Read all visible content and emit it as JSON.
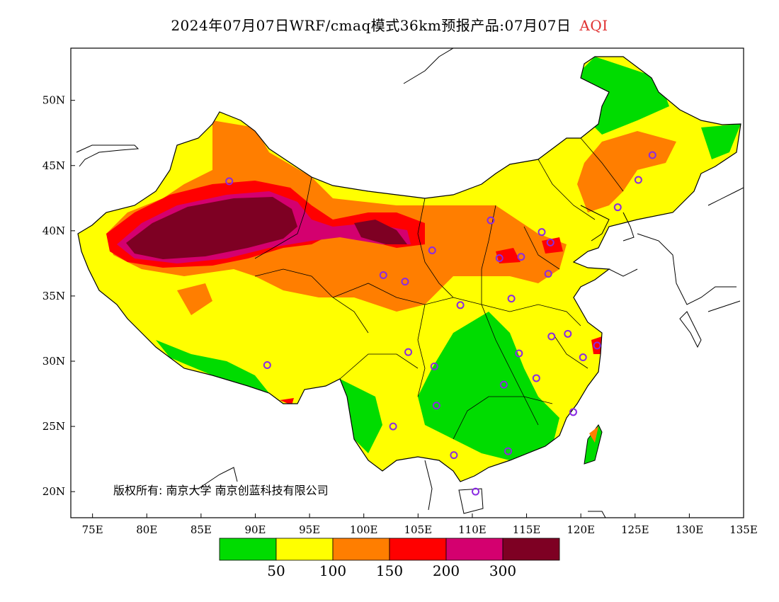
{
  "title": {
    "main": "2024年07月07日WRF/cmaq模式36km预报产品:07月07日",
    "variable": "AQI",
    "variable_color": "#e03030"
  },
  "map": {
    "lon_range": [
      73,
      135
    ],
    "lat_range": [
      18,
      54
    ],
    "lon_ticks": [
      "75E",
      "80E",
      "85E",
      "90E",
      "95E",
      "100E",
      "105E",
      "110E",
      "115E",
      "120E",
      "125E",
      "130E",
      "135E"
    ],
    "lat_ticks": [
      "20N",
      "25N",
      "30N",
      "35N",
      "40N",
      "45N",
      "50N"
    ],
    "copyright": "版权所有: 南京大学  南京创蓝科技有限公司"
  },
  "legend": {
    "colors": [
      "#00dc00",
      "#ffff00",
      "#ff7e00",
      "#ff0000",
      "#d4006f",
      "#7e0023"
    ],
    "labels": [
      "50",
      "100",
      "150",
      "200",
      "300"
    ]
  },
  "stations": [
    [
      87.6,
      43.8
    ],
    [
      101.8,
      36.6
    ],
    [
      103.8,
      36.1
    ],
    [
      106.3,
      38.5
    ],
    [
      111.7,
      40.8
    ],
    [
      116.4,
      39.9
    ],
    [
      117.2,
      39.1
    ],
    [
      114.5,
      38.0
    ],
    [
      112.5,
      37.9
    ],
    [
      117.0,
      36.7
    ],
    [
      113.6,
      34.8
    ],
    [
      108.9,
      34.3
    ],
    [
      117.3,
      31.9
    ],
    [
      118.8,
      32.1
    ],
    [
      121.5,
      31.2
    ],
    [
      120.2,
      30.3
    ],
    [
      114.3,
      30.6
    ],
    [
      112.9,
      28.2
    ],
    [
      115.9,
      28.7
    ],
    [
      119.3,
      26.1
    ],
    [
      104.1,
      30.7
    ],
    [
      106.5,
      29.6
    ],
    [
      106.7,
      26.6
    ],
    [
      102.7,
      25.0
    ],
    [
      108.3,
      22.8
    ],
    [
      113.3,
      23.1
    ],
    [
      110.3,
      20.0
    ],
    [
      91.1,
      29.7
    ],
    [
      123.4,
      41.8
    ],
    [
      125.3,
      43.9
    ],
    [
      126.6,
      45.8
    ]
  ]
}
